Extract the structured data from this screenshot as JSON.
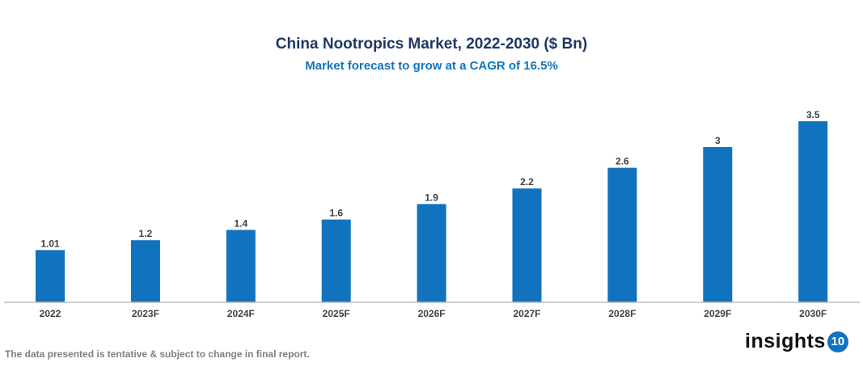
{
  "chart_data": {
    "type": "bar",
    "title": "China Nootropics Market, 2022-2030 ($ Bn)",
    "subtitle": "Market forecast to grow at a CAGR of 16.5%",
    "categories": [
      "2022",
      "2023F",
      "2024F",
      "2025F",
      "2026F",
      "2027F",
      "2028F",
      "2029F",
      "2030F"
    ],
    "values": [
      1.01,
      1.2,
      1.4,
      1.6,
      1.9,
      2.2,
      2.6,
      3,
      3.5
    ],
    "data_labels": [
      "1.01",
      "1.2",
      "1.4",
      "1.6",
      "1.9",
      "2.2",
      "2.6",
      "3",
      "3.5"
    ],
    "xlabel": "",
    "ylabel": "",
    "ylim": [
      0,
      3.5
    ],
    "grid": false,
    "bar_color": "#1173bd"
  },
  "footer": {
    "note": "The data presented is tentative & subject to change in final report.",
    "logo_text": "insights",
    "logo_number": "10"
  }
}
